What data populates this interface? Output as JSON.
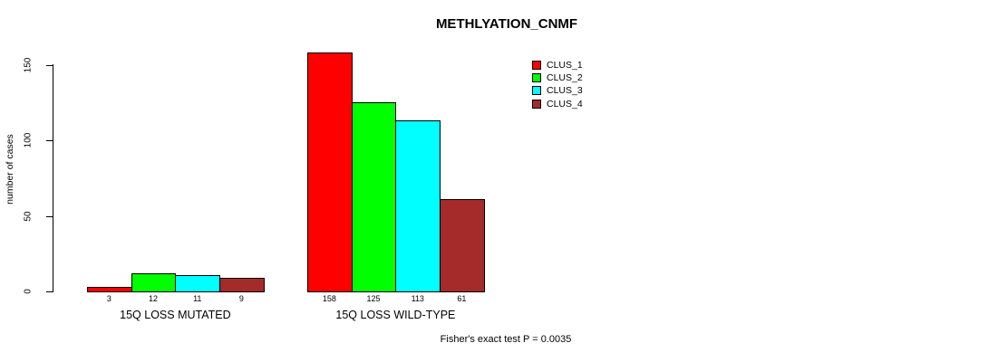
{
  "chart_data": {
    "type": "bar",
    "title": "METHLYATION_CNMF",
    "ylabel": "number of cases",
    "xlabel": "",
    "ylim": [
      0,
      150
    ],
    "yticks": [
      0,
      50,
      100,
      150
    ],
    "grid": false,
    "legend_position": "top-right",
    "categories": [
      "15Q LOSS MUTATED",
      "15Q LOSS WILD-TYPE"
    ],
    "series": [
      {
        "name": "CLUS_1",
        "color": "#FF0000",
        "values": [
          3,
          158
        ]
      },
      {
        "name": "CLUS_2",
        "color": "#00FF00",
        "values": [
          12,
          125
        ]
      },
      {
        "name": "CLUS_3",
        "color": "#00FFFF",
        "values": [
          11,
          113
        ]
      },
      {
        "name": "CLUS_4",
        "color": "#A52A2A",
        "values": [
          9,
          61
        ]
      }
    ],
    "bar_value_labels": [
      [
        3,
        12,
        11,
        9
      ],
      [
        158,
        125,
        113,
        61
      ]
    ],
    "annotation": "Fisher's exact test P = 0.0035"
  }
}
